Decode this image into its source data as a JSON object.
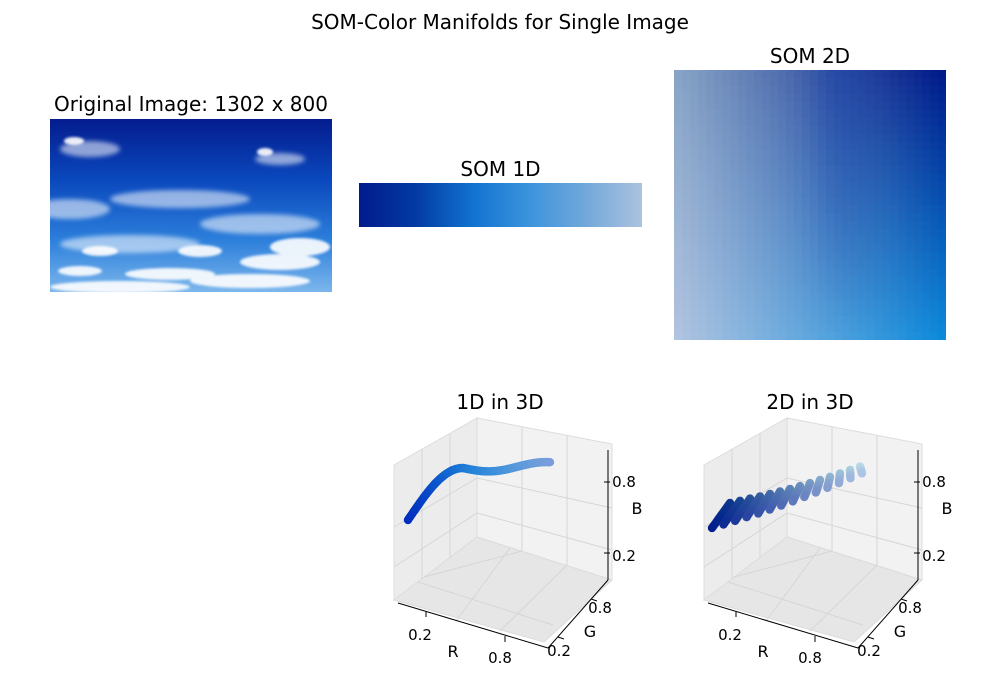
{
  "figure": {
    "title": "SOM-Color Manifolds for Single Image"
  },
  "panels": {
    "original": {
      "title": "Original Image: 1302 x 800"
    },
    "som1d": {
      "title": "SOM 1D"
    },
    "som2d": {
      "title": "SOM 2D"
    },
    "plot1d": {
      "title": "1D in 3D"
    },
    "plot2d": {
      "title": "2D in 3D"
    }
  },
  "colors": {
    "som1d_gradient": [
      "#011b8c",
      "#023aa3",
      "#1172d0",
      "#3b93dc",
      "#71a8da",
      "#acc2df"
    ],
    "som2d_corners": {
      "top_left": "#87a4c6",
      "top_right": "#001b8a",
      "bottom_left": "#b0c3e0",
      "bottom_right": "#0d89da"
    },
    "sky_top": "#0b2a9a",
    "sky_bottom": "#5a9ee6"
  },
  "chart_data": [
    {
      "type": "scatter",
      "projection": "3d",
      "title": "1D in 3D",
      "xlabel": "R",
      "ylabel": "G",
      "zlabel": "B",
      "xticks": [
        "0.2",
        "0.8"
      ],
      "yticks": [
        "0.2",
        "0.8"
      ],
      "zticks": [
        "0.2",
        "0.8"
      ],
      "xlim": [
        0,
        1
      ],
      "ylim": [
        0,
        1
      ],
      "zlim": [
        0,
        1
      ],
      "series": [
        {
          "points": [
            [
              0.0,
              0.11,
              0.55
            ],
            [
              0.02,
              0.18,
              0.6
            ],
            [
              0.04,
              0.27,
              0.66
            ],
            [
              0.07,
              0.36,
              0.72
            ],
            [
              0.1,
              0.45,
              0.77
            ],
            [
              0.14,
              0.52,
              0.8
            ],
            [
              0.19,
              0.58,
              0.84
            ],
            [
              0.23,
              0.62,
              0.86
            ],
            [
              0.28,
              0.65,
              0.87
            ],
            [
              0.34,
              0.68,
              0.88
            ],
            [
              0.4,
              0.7,
              0.88
            ],
            [
              0.46,
              0.72,
              0.88
            ],
            [
              0.52,
              0.74,
              0.88
            ],
            [
              0.58,
              0.75,
              0.87
            ],
            [
              0.63,
              0.76,
              0.88
            ],
            [
              0.68,
              0.76,
              0.89
            ]
          ]
        }
      ]
    },
    {
      "type": "scatter",
      "projection": "3d",
      "title": "2D in 3D",
      "xlabel": "R",
      "ylabel": "G",
      "zlabel": "B",
      "xticks": [
        "0.2",
        "0.8"
      ],
      "yticks": [
        "0.2",
        "0.8"
      ],
      "zticks": [
        "0.2",
        "0.8"
      ],
      "xlim": [
        0,
        1
      ],
      "ylim": [
        0,
        1
      ],
      "zlim": [
        0,
        1
      ],
      "series": [
        {
          "description_grid": "10x10 SOM lattice, R 0.0-0.7, G 0.1-0.8, B 0.55-0.90"
        }
      ]
    }
  ]
}
